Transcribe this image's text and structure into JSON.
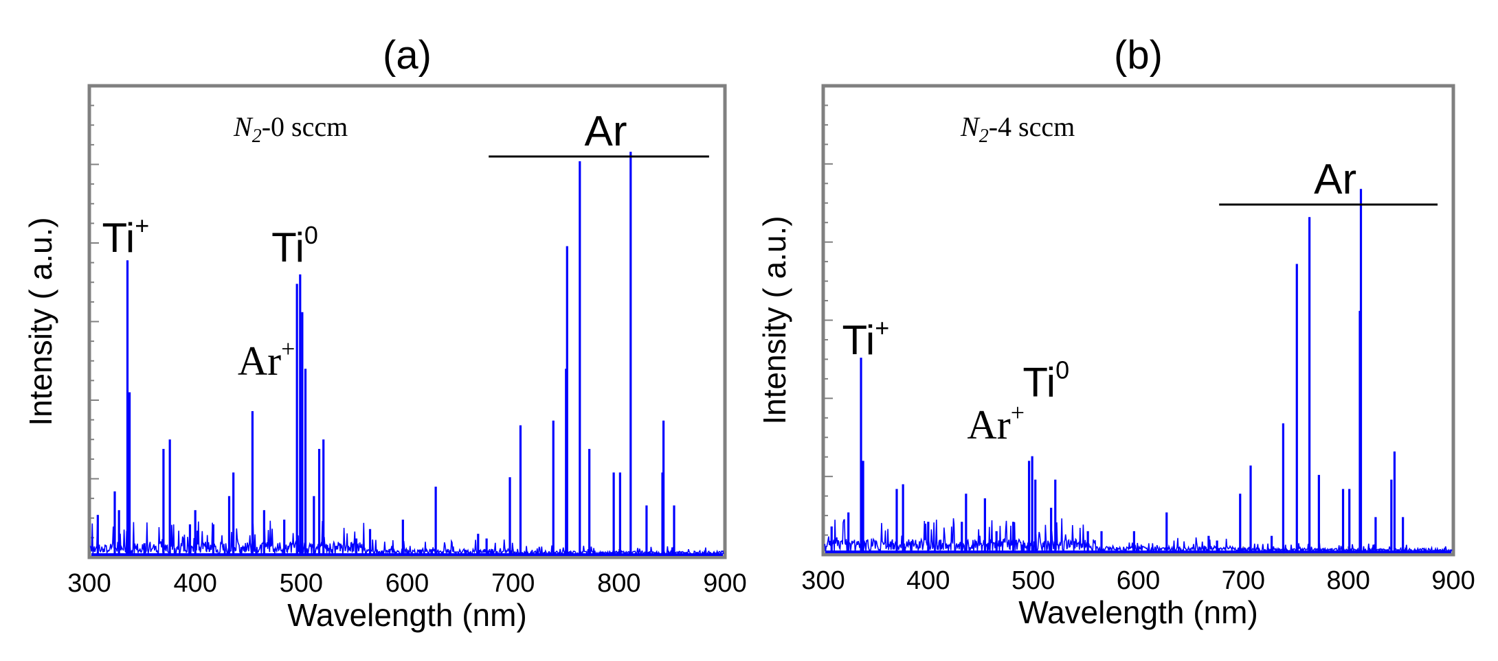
{
  "chart_data": [
    {
      "type": "line",
      "panel_label": "(a)",
      "condition": {
        "prefix": "N",
        "subscript": "2",
        "suffix": "-0 sccm"
      },
      "xlabel": "Wavelength (nm)",
      "ylabel": "Intensity ( a.u.)",
      "xlim": [
        300,
        900
      ],
      "xticks": [
        "300",
        "400",
        "500",
        "600",
        "700",
        "800",
        "900"
      ],
      "color": "#0000ff",
      "region_label": {
        "text": "Ar",
        "x_range": [
          677,
          885
        ]
      },
      "annotations": [
        {
          "base": "Ti",
          "sup": "+",
          "x": 312,
          "level": 0.63,
          "serif": false
        },
        {
          "base": "Ti",
          "sup": "0",
          "x": 472,
          "level": 0.61,
          "serif": false
        },
        {
          "base": "Ar",
          "sup": "+",
          "x": 440,
          "level": 0.37,
          "serif": true
        }
      ],
      "peaks": [
        {
          "x": 308,
          "y": 0.09
        },
        {
          "x": 324,
          "y": 0.14
        },
        {
          "x": 328,
          "y": 0.1
        },
        {
          "x": 336,
          "y": 0.63
        },
        {
          "x": 338,
          "y": 0.35
        },
        {
          "x": 352,
          "y": 0.03
        },
        {
          "x": 370,
          "y": 0.23
        },
        {
          "x": 376,
          "y": 0.25
        },
        {
          "x": 395,
          "y": 0.07
        },
        {
          "x": 400,
          "y": 0.1
        },
        {
          "x": 417,
          "y": 0.07
        },
        {
          "x": 432,
          "y": 0.13
        },
        {
          "x": 436,
          "y": 0.18
        },
        {
          "x": 454,
          "y": 0.31
        },
        {
          "x": 465,
          "y": 0.1
        },
        {
          "x": 484,
          "y": 0.08
        },
        {
          "x": 496,
          "y": 0.58
        },
        {
          "x": 499,
          "y": 0.6
        },
        {
          "x": 501,
          "y": 0.52
        },
        {
          "x": 504,
          "y": 0.4
        },
        {
          "x": 512,
          "y": 0.13
        },
        {
          "x": 517,
          "y": 0.23
        },
        {
          "x": 521,
          "y": 0.25
        },
        {
          "x": 552,
          "y": 0.04
        },
        {
          "x": 565,
          "y": 0.06
        },
        {
          "x": 596,
          "y": 0.08
        },
        {
          "x": 627,
          "y": 0.15
        },
        {
          "x": 667,
          "y": 0.05
        },
        {
          "x": 675,
          "y": 0.04
        },
        {
          "x": 697,
          "y": 0.17
        },
        {
          "x": 707,
          "y": 0.28
        },
        {
          "x": 738,
          "y": 0.29
        },
        {
          "x": 750,
          "y": 0.4
        },
        {
          "x": 751,
          "y": 0.66
        },
        {
          "x": 763,
          "y": 0.84
        },
        {
          "x": 772,
          "y": 0.23
        },
        {
          "x": 795,
          "y": 0.18
        },
        {
          "x": 801,
          "y": 0.18
        },
        {
          "x": 811,
          "y": 0.86
        },
        {
          "x": 826,
          "y": 0.11
        },
        {
          "x": 841,
          "y": 0.18
        },
        {
          "x": 842,
          "y": 0.29
        },
        {
          "x": 852,
          "y": 0.11
        }
      ]
    },
    {
      "type": "line",
      "panel_label": "(b)",
      "condition": {
        "prefix": "N",
        "subscript": "2",
        "suffix": "-4 sccm"
      },
      "xlabel": "Wavelength (nm)",
      "ylabel": "Intensity ( a.u.)",
      "xlim": [
        300,
        900
      ],
      "xticks": [
        "300",
        "400",
        "500",
        "600",
        "700",
        "800",
        "900"
      ],
      "color": "#0000ff",
      "region_label": {
        "text": "Ar",
        "x_range": [
          677,
          885
        ]
      },
      "annotations": [
        {
          "base": "Ti",
          "sup": "+",
          "x": 318,
          "level": 0.41,
          "serif": false
        },
        {
          "base": "Ti",
          "sup": "0",
          "x": 490,
          "level": 0.32,
          "serif": false
        },
        {
          "base": "Ar",
          "sup": "+",
          "x": 437,
          "level": 0.23,
          "serif": true
        }
      ],
      "peaks": [
        {
          "x": 308,
          "y": 0.06
        },
        {
          "x": 324,
          "y": 0.09
        },
        {
          "x": 336,
          "y": 0.42
        },
        {
          "x": 338,
          "y": 0.2
        },
        {
          "x": 370,
          "y": 0.14
        },
        {
          "x": 376,
          "y": 0.15
        },
        {
          "x": 400,
          "y": 0.07
        },
        {
          "x": 432,
          "y": 0.07
        },
        {
          "x": 436,
          "y": 0.13
        },
        {
          "x": 454,
          "y": 0.12
        },
        {
          "x": 465,
          "y": 0.05
        },
        {
          "x": 481,
          "y": 0.07
        },
        {
          "x": 496,
          "y": 0.2
        },
        {
          "x": 499,
          "y": 0.21
        },
        {
          "x": 502,
          "y": 0.16
        },
        {
          "x": 517,
          "y": 0.1
        },
        {
          "x": 521,
          "y": 0.16
        },
        {
          "x": 552,
          "y": 0.05
        },
        {
          "x": 565,
          "y": 0.05
        },
        {
          "x": 596,
          "y": 0.05
        },
        {
          "x": 627,
          "y": 0.09
        },
        {
          "x": 667,
          "y": 0.04
        },
        {
          "x": 675,
          "y": 0.03
        },
        {
          "x": 697,
          "y": 0.13
        },
        {
          "x": 707,
          "y": 0.19
        },
        {
          "x": 727,
          "y": 0.04
        },
        {
          "x": 738,
          "y": 0.28
        },
        {
          "x": 751,
          "y": 0.62
        },
        {
          "x": 763,
          "y": 0.72
        },
        {
          "x": 772,
          "y": 0.17
        },
        {
          "x": 795,
          "y": 0.14
        },
        {
          "x": 801,
          "y": 0.14
        },
        {
          "x": 811,
          "y": 0.52
        },
        {
          "x": 812,
          "y": 0.78
        },
        {
          "x": 826,
          "y": 0.08
        },
        {
          "x": 841,
          "y": 0.16
        },
        {
          "x": 844,
          "y": 0.22
        },
        {
          "x": 852,
          "y": 0.08
        }
      ]
    }
  ]
}
